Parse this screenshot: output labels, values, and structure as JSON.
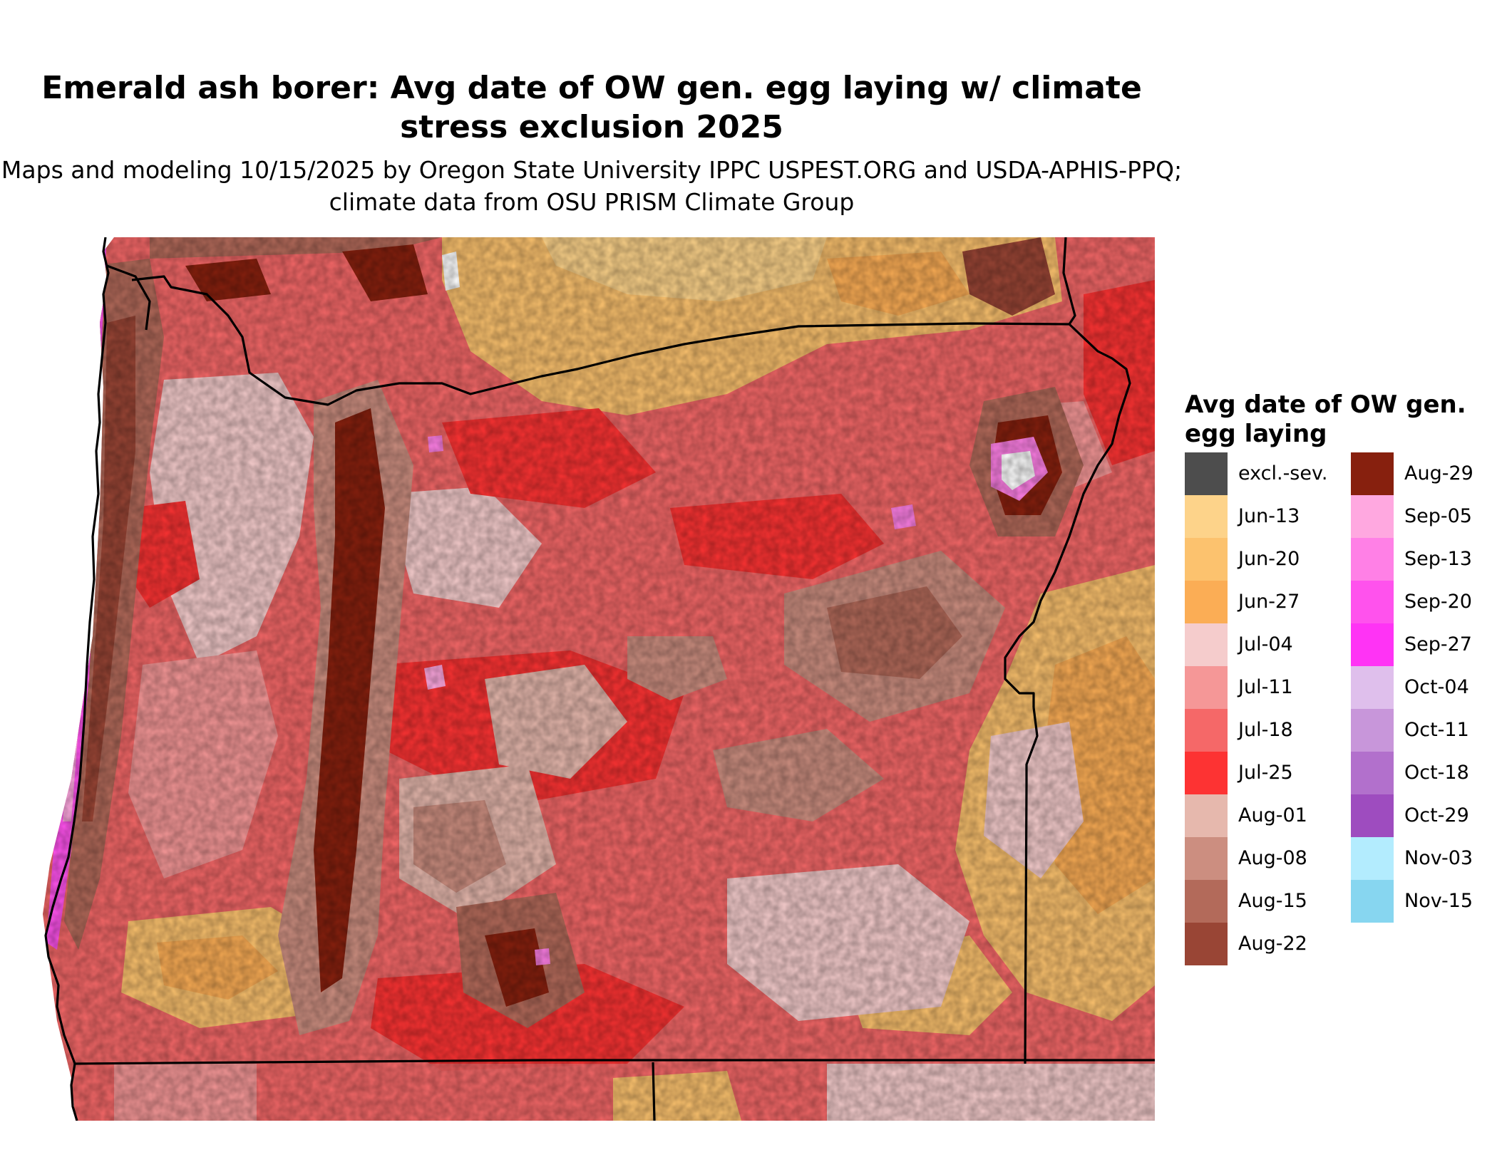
{
  "title": "Emerald ash borer: Avg date of OW gen. egg laying w/ climate stress exclusion 2025",
  "subtitle": "Maps and modeling 10/15/2025 by Oregon State University IPPC USPEST.ORG and USDA-APHIS-PPQ; climate data from OSU PRISM Climate Group",
  "legend": {
    "title": "Avg date of OW gen. egg laying",
    "items": [
      {
        "label": "excl.-sev.",
        "color": "#4d4d4d"
      },
      {
        "label": "Jun-13",
        "color": "#fdd38a"
      },
      {
        "label": "Jun-20",
        "color": "#fcc26e"
      },
      {
        "label": "Jun-27",
        "color": "#fbad55"
      },
      {
        "label": "Jul-04",
        "color": "#f5cccc"
      },
      {
        "label": "Jul-11",
        "color": "#f59797"
      },
      {
        "label": "Jul-18",
        "color": "#f56868"
      },
      {
        "label": "Jul-25",
        "color": "#fd3333"
      },
      {
        "label": "Aug-01",
        "color": "#e6b8ad"
      },
      {
        "label": "Aug-08",
        "color": "#cc8e80"
      },
      {
        "label": "Aug-15",
        "color": "#b36a5a"
      },
      {
        "label": "Aug-22",
        "color": "#994535"
      },
      {
        "label": "Aug-29",
        "color": "#87200e"
      },
      {
        "label": "Sep-05",
        "color": "#ffa8e0"
      },
      {
        "label": "Sep-13",
        "color": "#ff80e6"
      },
      {
        "label": "Sep-20",
        "color": "#ff52ed"
      },
      {
        "label": "Sep-27",
        "color": "#ff33f5"
      },
      {
        "label": "Oct-04",
        "color": "#dfbfec"
      },
      {
        "label": "Oct-11",
        "color": "#c896da"
      },
      {
        "label": "Oct-18",
        "color": "#b270cc"
      },
      {
        "label": "Oct-29",
        "color": "#9e4cbf"
      },
      {
        "label": "Nov-03",
        "color": "#b3ecfe"
      },
      {
        "label": "Nov-15",
        "color": "#87d6f0"
      }
    ]
  }
}
